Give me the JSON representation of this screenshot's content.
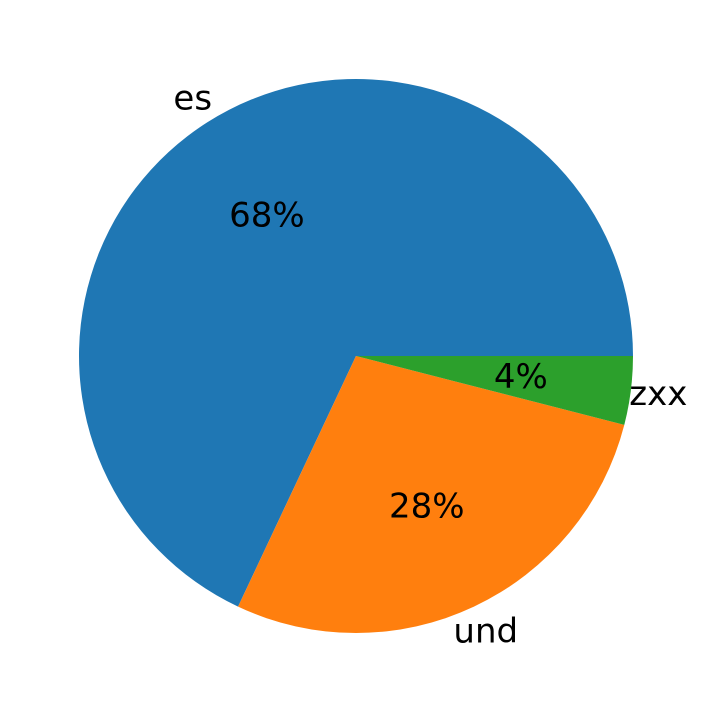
{
  "chart_data": {
    "type": "pie",
    "categories": [
      "es",
      "und",
      "zxx"
    ],
    "values": [
      68,
      28,
      4
    ],
    "percent_labels": [
      "68%",
      "28%",
      "4%"
    ],
    "colors": [
      "#1f77b4",
      "#ff7f0e",
      "#2ca02c"
    ],
    "start_angle": 0,
    "direction": "counterclockwise"
  }
}
